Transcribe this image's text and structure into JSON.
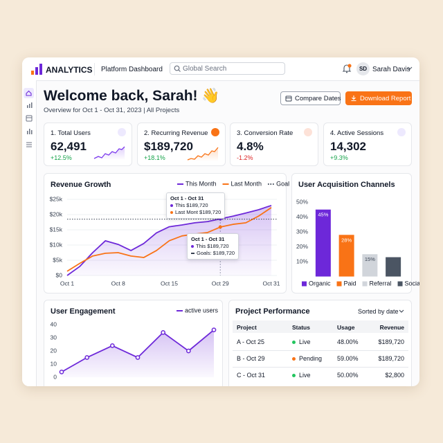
{
  "header": {
    "brand": "ANALYTICS",
    "section": "Platform Dashboard",
    "search_placeholder": "Global Search",
    "avatar_initials": "SD",
    "user_name": "Sarah Davis"
  },
  "welcome": {
    "title": "Welcome back, Sarah! 👋",
    "subtitle": "Overview for Oct 1 - Oct 31, 2023 | All Projects",
    "buttons": [
      "Compare Dates",
      "Download Report"
    ]
  },
  "kpis": [
    {
      "label": "1. Total Users",
      "value": "62,491",
      "change": "+12.5%",
      "change_color": "#16a34a",
      "accent": "#ede9fe"
    },
    {
      "label": "2. Recurring Revenue",
      "value": "$189,720",
      "change": "+18.1%",
      "change_color": "#16a34a",
      "accent": "#f97316"
    },
    {
      "label": "3. Conversion Rate",
      "value": "4.8%",
      "change": "-1.2%",
      "change_color": "#dc2626",
      "accent": "#fde2d8"
    },
    {
      "label": "4. Active Sessions",
      "value": "14,302",
      "change": "+9.3%",
      "change_color": "#16a34a",
      "accent": "#ede9fe"
    }
  ],
  "chart_data": [
    {
      "type": "line",
      "title": "Revenue Growth",
      "categories": [
        "Oct 1",
        null,
        null,
        null,
        "Oct 8",
        null,
        null,
        null,
        "Oct 15",
        null,
        null,
        null,
        "Oct 29",
        null,
        null,
        null,
        "Oct 31"
      ],
      "series": [
        {
          "name": "This Month",
          "color": "#6d28d9",
          "area": true,
          "values": [
            0,
            3000,
            7500,
            11400,
            10200,
            8200,
            10500,
            14000,
            16000,
            16600,
            17300,
            17700,
            18600,
            19500,
            20500,
            21600,
            23000
          ]
        },
        {
          "name": "Last Month",
          "color": "#f97316",
          "area": false,
          "values": [
            1400,
            4000,
            6400,
            7300,
            7500,
            6400,
            5900,
            8200,
            11400,
            13000,
            13600,
            14100,
            15900,
            16800,
            17300,
            19500,
            22300
          ]
        }
      ],
      "goal": {
        "name": "Goal",
        "value": 18500,
        "color": "#374151"
      },
      "ylim": [
        0,
        25000
      ],
      "yticks": [
        {
          "value": 0,
          "label": "$0"
        },
        {
          "value": 5000,
          "label": "$5k"
        },
        {
          "value": 10000,
          "label": "$10k"
        },
        {
          "value": 15000,
          "label": "$15k"
        },
        {
          "value": 20000,
          "label": "$20k"
        },
        {
          "value": 25000,
          "label": "$25k"
        }
      ],
      "grid": true,
      "markers": false,
      "highlight_index": 12,
      "tooltips": [
        {
          "title": "Oct 1 - Oct 31",
          "lines": [
            "This $189,720",
            "Last Mont $189,720"
          ]
        },
        {
          "title": "Oct 1 - Oct 31",
          "lines": [
            "This $189,720",
            "Goals: $189,720"
          ]
        }
      ]
    },
    {
      "type": "bar",
      "title": "User Acquisition Channels",
      "categories": [
        "Organic",
        "Paid",
        "Referral",
        "Social"
      ],
      "values": [
        45,
        28,
        15,
        13
      ],
      "value_labels": [
        "45%",
        "28%",
        "15%",
        null
      ],
      "colors": [
        "#6d28d9",
        "#f97316",
        "#d1d5db",
        "#4b5563"
      ],
      "value_label_colors": [
        "#ffffff",
        "#ffffff",
        "#374151",
        null
      ],
      "ylim": [
        0,
        50
      ],
      "yticks": [
        {
          "value": 10,
          "label": "10%"
        },
        {
          "value": 20,
          "label": "20%"
        },
        {
          "value": 30,
          "label": "30%"
        },
        {
          "value": 40,
          "label": "40%"
        },
        {
          "value": 50,
          "label": "50%"
        }
      ],
      "grid": false
    },
    {
      "type": "line",
      "title": "User Engagement",
      "categories": [
        null,
        null,
        null,
        null,
        null,
        null,
        null
      ],
      "series": [
        {
          "name": "active users",
          "color": "#6d28d9",
          "area": true,
          "values": [
            4,
            15,
            24,
            15,
            34,
            20,
            36
          ]
        }
      ],
      "ylim": [
        0,
        40
      ],
      "yticks": [
        0,
        10,
        20,
        30,
        40
      ],
      "grid": false,
      "markers": true
    }
  ],
  "project_table": {
    "title": "Project Performance",
    "sort": "Sorted by date",
    "columns": [
      "Project",
      "Status",
      "Usage",
      "Revenue"
    ],
    "rows": [
      [
        "A - Oct 25",
        "Live",
        "48.00%",
        "$189,720"
      ],
      [
        "B - Oct 29",
        "Pending",
        "59.00%",
        "$189,720"
      ],
      [
        "C - Oct 31",
        "Live",
        "50.00%",
        "$2,800"
      ]
    ],
    "status_colors": [
      "#22c55e",
      "#f97316",
      "#22c55e"
    ]
  }
}
